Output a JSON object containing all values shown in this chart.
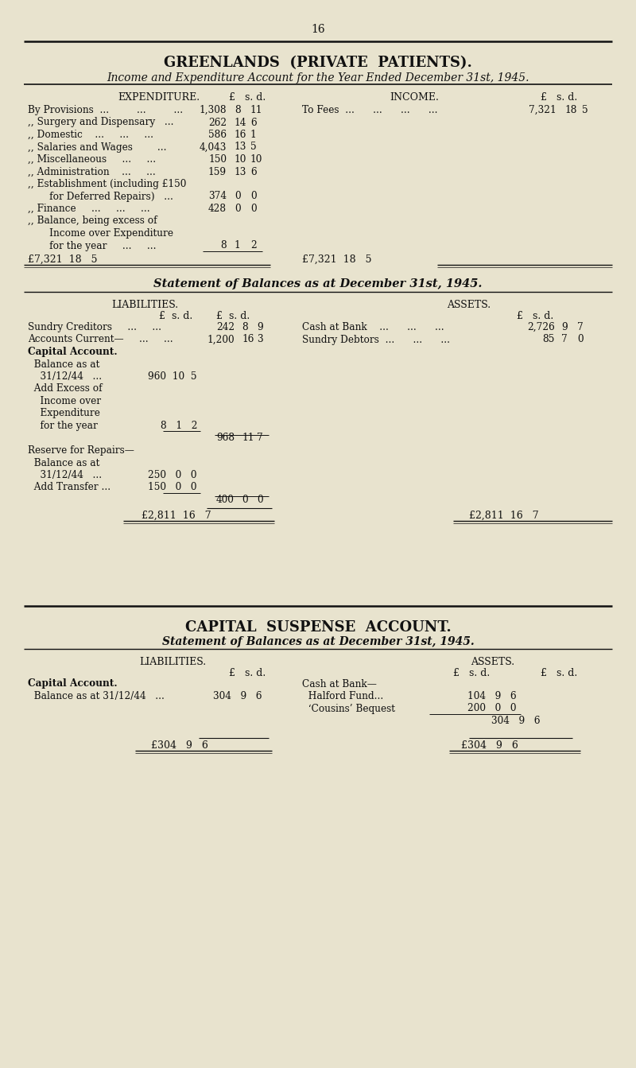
{
  "bg_color": "#e8e3ce",
  "text_color": "#1a1a1a",
  "page_num": "16",
  "title1": "GREENLANDS  (PRIVATE  PATIENTS).",
  "title2": "Income and Expenditure Account for the Year Ended December 31st, 1945.",
  "s1_left_header": "EXPENDITURE.",
  "s1_right_header": "INCOME.",
  "s1_col_header": "£   s. d.",
  "s1_left_rows": [
    [
      "By Provisions  ...         ...         ...",
      "1,308",
      "8",
      "11"
    ],
    [
      ",, Surgery and Dispensary   ...",
      "262",
      "14",
      "6"
    ],
    [
      ",, Domestic    ...     ...     ...",
      "586",
      "16",
      "1"
    ],
    [
      ",, Salaries and Wages        ...",
      "4,043",
      "13",
      "5"
    ],
    [
      ",, Miscellaneous     ...     ...",
      "150",
      "10",
      "10"
    ],
    [
      ",, Administration    ...     ...",
      "159",
      "13",
      "6"
    ],
    [
      ",, Establishment (including £150",
      "",
      "",
      ""
    ],
    [
      "       for Deferred Repairs)   ...",
      "374",
      "0",
      "0"
    ],
    [
      ",, Finance     ...     ...     ...",
      "428",
      "0",
      "0"
    ],
    [
      ",, Balance, being excess of",
      "",
      "",
      ""
    ],
    [
      "       Income over Expenditure",
      "",
      "",
      ""
    ],
    [
      "       for the year     ...     ...",
      "8",
      "1",
      "2"
    ]
  ],
  "s1_left_total": "£7,321  18   5",
  "s1_right_rows": [
    [
      "To Fees  ...      ...      ...      ...",
      "7,321",
      "18",
      "5"
    ]
  ],
  "s1_right_total": "£7,321  18   5",
  "s2_title": "Statement of Balances as at December 31st, 1945.",
  "s2_left_header": "LIABILITIES.",
  "s2_right_header": "ASSETS.",
  "s2_left_col1": "£  s. d.",
  "s2_left_col2": "£  s. d.",
  "s2_right_col": "£   s. d.",
  "s2_left_rows": [
    [
      "Sundry Creditors     ...     ...",
      "",
      "242",
      "8",
      "9",
      false
    ],
    [
      "Accounts Current—     ...     ...",
      "",
      "1,200",
      "16",
      "3",
      false
    ],
    [
      "Capital Account.",
      "",
      "",
      "",
      "",
      true
    ],
    [
      "  Balance as at",
      "",
      "",
      "",
      "",
      false
    ],
    [
      "    31/12/44   ...",
      "960  10  5",
      "",
      "",
      "",
      false
    ],
    [
      "  Add Excess of",
      "",
      "",
      "",
      "",
      false
    ],
    [
      "    Income over",
      "",
      "",
      "",
      "",
      false
    ],
    [
      "    Expenditure",
      "",
      "",
      "",
      "",
      false
    ],
    [
      "    for the year",
      "8   1   2",
      "",
      "",
      "",
      false
    ],
    [
      "",
      "",
      "968",
      "11",
      "7",
      false
    ],
    [
      "Reserve for Repairs—",
      "",
      "",
      "",
      "",
      false
    ],
    [
      "  Balance as at",
      "",
      "",
      "",
      "",
      false
    ],
    [
      "    31/12/44   ...",
      "250   0   0",
      "",
      "",
      "",
      false
    ],
    [
      "  Add Transfer ...",
      "150   0   0",
      "",
      "",
      "",
      false
    ],
    [
      "",
      "",
      "400",
      "0",
      "0",
      false
    ]
  ],
  "s2_left_total": "£2,811  16   7",
  "s2_right_rows": [
    [
      "Cash at Bank    ...      ...      ...",
      "2,726",
      "9",
      "7"
    ],
    [
      "Sundry Debtors  ...      ...      ...",
      "85",
      "7",
      "0"
    ]
  ],
  "s2_right_total": "£2,811  16   7",
  "s3_title1": "CAPITAL  SUSPENSE  ACCOUNT.",
  "s3_title2": "Statement of Balances as at December 31st, 1945.",
  "s3_left_header": "LIABILITIES.",
  "s3_right_header": "ASSETS.",
  "s3_left_rows": [
    [
      "Capital Account.",
      "",
      true
    ],
    [
      "  Balance as at 31/12/44   ...",
      "304   9   6",
      false
    ]
  ],
  "s3_left_total": "£304   9   6",
  "s3_right_rows": [
    [
      "Cash at Bank—",
      ""
    ],
    [
      "  Halford Fund...",
      "104   9   6"
    ],
    [
      "  ‘Cousins’ Bequest",
      "200   0   0"
    ]
  ],
  "s3_right_subtotal": "304   9   6",
  "s3_right_total": "£304   9   6"
}
